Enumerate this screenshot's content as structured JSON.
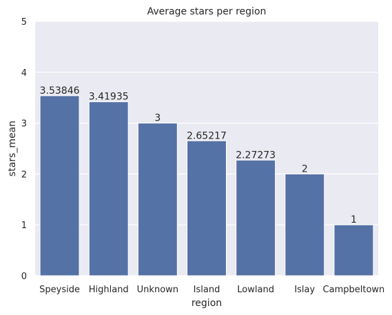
{
  "chart_data": {
    "type": "bar",
    "title": "Average stars per region",
    "xlabel": "region",
    "ylabel": "stars_mean",
    "categories": [
      "Speyside",
      "Highland",
      "Unknown",
      "Island",
      "Lowland",
      "Islay",
      "Campbeltown"
    ],
    "values": [
      3.53846,
      3.41935,
      3,
      2.65217,
      2.27273,
      2,
      1
    ],
    "data_labels": [
      "3.53846",
      "3.41935",
      "3",
      "2.65217",
      "2.27273",
      "2",
      "1"
    ],
    "ylim": [
      0,
      5
    ],
    "yticks": [
      0,
      1,
      2,
      3,
      4,
      5
    ],
    "grid": true,
    "colors": {
      "bar": "#5572a6",
      "background": "#eaeaf2",
      "grid": "#ffffff"
    }
  }
}
